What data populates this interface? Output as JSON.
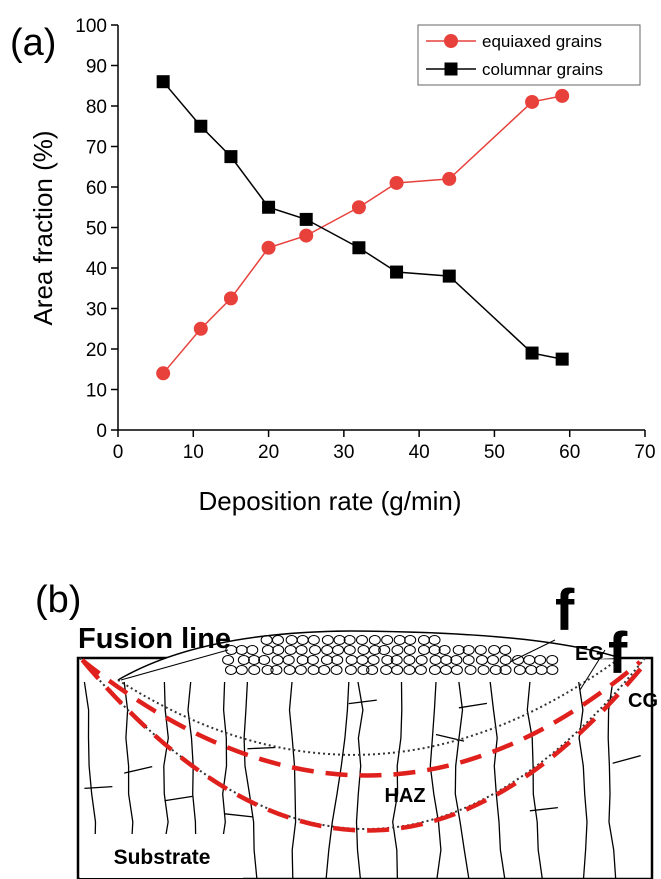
{
  "chart_data": {
    "type": "line",
    "panel_label": "(a)",
    "x_label": "Deposition rate (g/min)",
    "y_label": "Area fraction (%)",
    "x": [
      6,
      11,
      15,
      20,
      25,
      32,
      37,
      44,
      55,
      59
    ],
    "series": [
      {
        "name": "equiaxed grains",
        "color": "#e8413c",
        "marker": "circle",
        "values": [
          14,
          25,
          32.5,
          45,
          48,
          55,
          61,
          62,
          81,
          82.5
        ]
      },
      {
        "name": "columnar grains",
        "color": "#000000",
        "marker": "square",
        "values": [
          86,
          75,
          67.5,
          55,
          52,
          45,
          39,
          38,
          19,
          17.5
        ]
      }
    ],
    "xlim": [
      0,
      70
    ],
    "xticks": [
      0,
      10,
      20,
      30,
      40,
      50,
      60,
      70
    ],
    "ylim": [
      0,
      100
    ],
    "yticks": [
      0,
      10,
      20,
      30,
      40,
      50,
      60,
      70,
      80,
      90,
      100
    ],
    "legend": "upper right"
  },
  "diagram": {
    "panel_label": "(b)",
    "fusion_line": "Fusion line",
    "f_eg": {
      "symbol": "f",
      "subscript": "EG"
    },
    "f_cg": {
      "symbol": "f",
      "subscript": "CG"
    },
    "haz": "HAZ",
    "substrate": "Substrate"
  }
}
